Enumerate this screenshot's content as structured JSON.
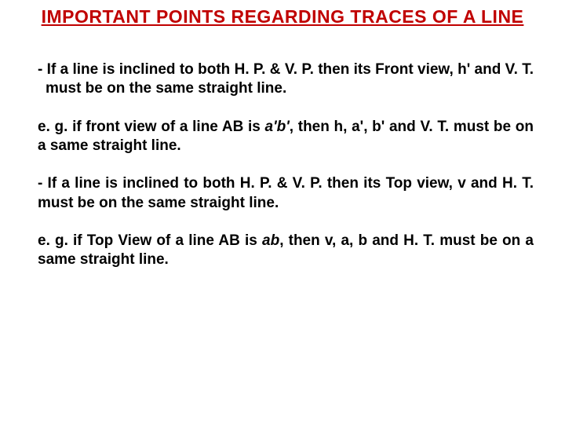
{
  "title": {
    "text": "IMPORTANT POINTS REGARDING TRACES OF A LINE",
    "color": "#c00000"
  },
  "paragraphs": {
    "p1": "- If a line is inclined to both H. P. & V. P. then its Front view, h' and V. T. must be on the same straight line.",
    "p2_pre": "e. g. if front view of a line AB is ",
    "p2_italic": "a'b'",
    "p2_post": ", then h, a', b' and V. T. must be on a same straight line.",
    "p3": "- If a line is inclined to both H. P. & V. P. then its Top view, v and H. T. must be on the same straight line.",
    "p4_pre": "e. g. if Top View of a line AB is ",
    "p4_italic": "ab",
    "p4_post": ", then v, a, b and H. T. must be on a same straight line."
  },
  "colors": {
    "title": "#c00000",
    "body_text": "#000000",
    "background": "#ffffff"
  },
  "fonts": {
    "title_size": 23,
    "body_size": 19
  }
}
